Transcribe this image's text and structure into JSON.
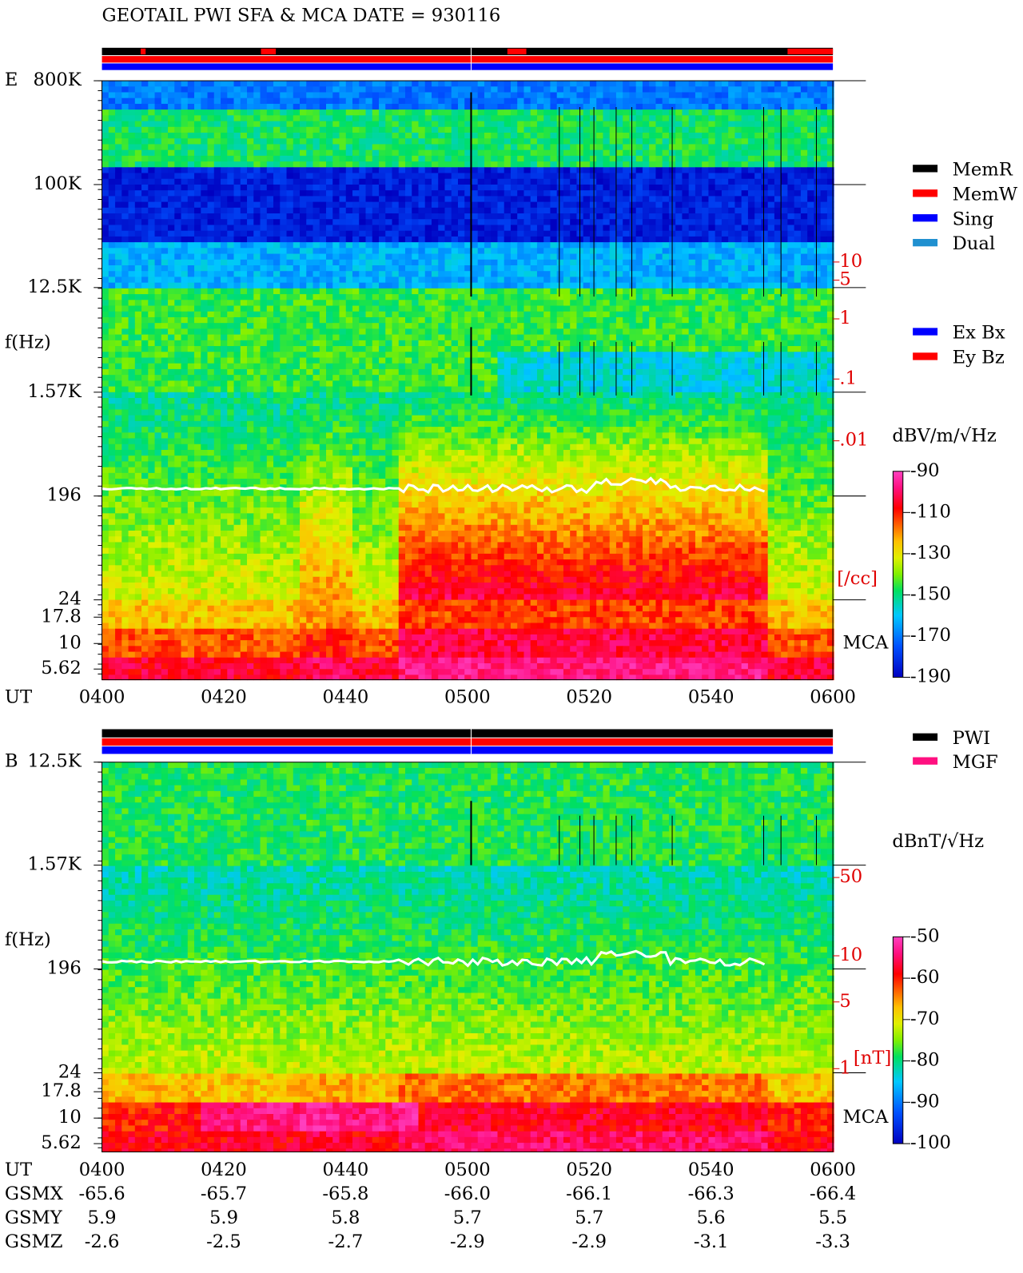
{
  "title": "GEOTAIL   PWI SFA & MCA   DATE = 930116",
  "ut_label": "UT",
  "ut_ticks": [
    "0400",
    "0420",
    "0440",
    "0500",
    "0520",
    "0540",
    "0600"
  ],
  "panels": [
    {
      "label": "E",
      "freq_label": "f(Hz)",
      "freq_ticks": [
        "800K",
        "100K",
        "12.5K",
        "1.57K",
        "196",
        "24",
        "17.8",
        "10",
        "5.62"
      ],
      "mca_label": "MCA",
      "right_ticks": [
        "10",
        "5",
        "1",
        ".1",
        ".01"
      ],
      "right_unit": "[/cc]",
      "colorbar_unit": "dBV/m/√Hz",
      "colorbar_ticks": [
        "-90",
        "-110",
        "-130",
        "-150",
        "-170",
        "-190"
      ]
    },
    {
      "label": "B",
      "freq_label": "f(Hz)",
      "freq_ticks": [
        "12.5K",
        "1.57K",
        "196",
        "24",
        "17.8",
        "10",
        "5.62"
      ],
      "mca_label": "MCA",
      "right_ticks": [
        "50",
        "10",
        "5",
        "1"
      ],
      "right_unit": "[nT]",
      "colorbar_unit": "dBnT/√Hz",
      "colorbar_ticks": [
        "-50",
        "-60",
        "-70",
        "-80",
        "-90",
        "-100"
      ]
    }
  ],
  "legend_mode": [
    "MemR",
    "MemW",
    "Sing",
    "Dual"
  ],
  "legend_component": [
    "Ex Bx",
    "Ey Bz"
  ],
  "legend_source": [
    "PWI",
    "MGF"
  ],
  "orbit": [
    {
      "label": "GSMX",
      "values": [
        "-65.6",
        "-65.7",
        "-65.8",
        "-66.0",
        "-66.1",
        "-66.3",
        "-66.4"
      ]
    },
    {
      "label": "GSMY",
      "values": [
        "5.9",
        "5.9",
        "5.8",
        "5.7",
        "5.7",
        "5.6",
        "5.5"
      ]
    },
    {
      "label": "GSMZ",
      "values": [
        "-2.6",
        "-2.5",
        "-2.7",
        "-2.9",
        "-2.9",
        "-3.1",
        "-3.3"
      ]
    }
  ]
}
